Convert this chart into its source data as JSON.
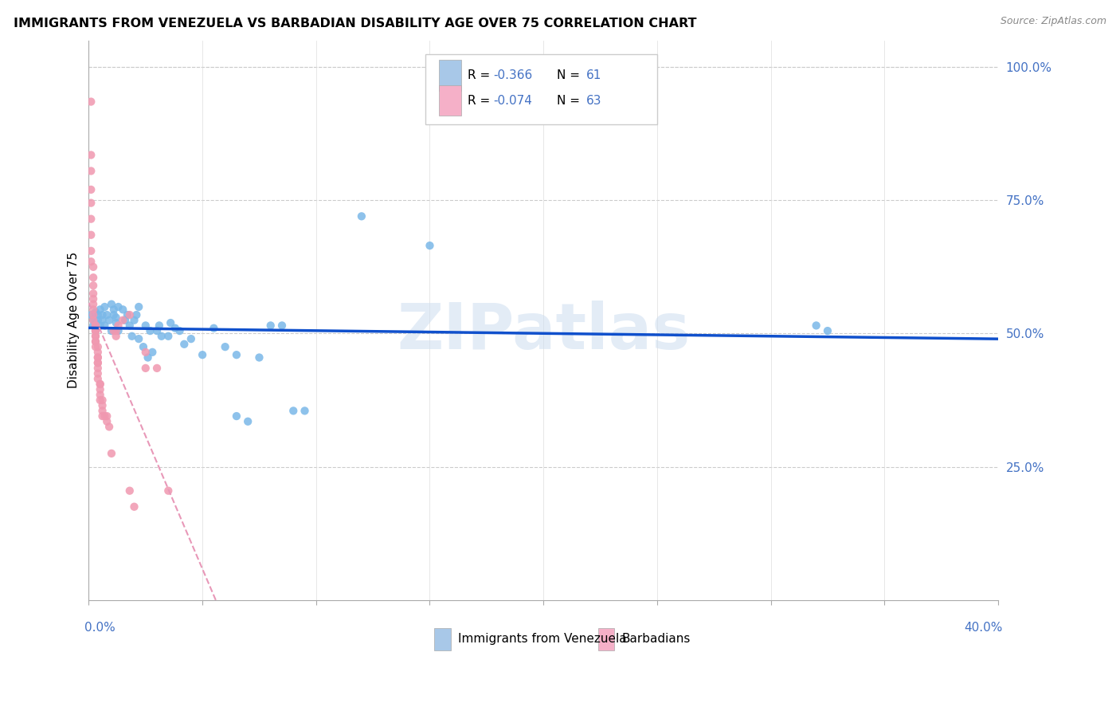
{
  "title": "IMMIGRANTS FROM VENEZUELA VS BARBADIAN DISABILITY AGE OVER 75 CORRELATION CHART",
  "source": "Source: ZipAtlas.com",
  "ylabel": "Disability Age Over 75",
  "right_yticks": [
    "100.0%",
    "75.0%",
    "50.0%",
    "25.0%"
  ],
  "right_ytick_vals": [
    1.0,
    0.75,
    0.5,
    0.25
  ],
  "legend_line1": "R = -0.366   N =  61",
  "legend_line2": "R = -0.074   N =  63",
  "legend_color1": "#a8c8e8",
  "legend_color2": "#f5b0c8",
  "legend_bottom": [
    "Immigrants from Venezuela",
    "Barbadians"
  ],
  "legend_bottom_colors": [
    "#a8c8e8",
    "#f5b0c8"
  ],
  "xmin": 0.0,
  "xmax": 0.4,
  "ymin": 0.0,
  "ymax": 1.05,
  "watermark": "ZIPatlas",
  "blue_color": "#7ab8e8",
  "pink_color": "#f098b0",
  "trend_blue": "#1050cc",
  "trend_pink_color": "#e898b8",
  "venezuela_points": [
    [
      0.001,
      0.535
    ],
    [
      0.002,
      0.525
    ],
    [
      0.002,
      0.515
    ],
    [
      0.003,
      0.52
    ],
    [
      0.003,
      0.54
    ],
    [
      0.004,
      0.535
    ],
    [
      0.004,
      0.525
    ],
    [
      0.005,
      0.545
    ],
    [
      0.005,
      0.515
    ],
    [
      0.006,
      0.535
    ],
    [
      0.006,
      0.525
    ],
    [
      0.007,
      0.55
    ],
    [
      0.007,
      0.515
    ],
    [
      0.008,
      0.535
    ],
    [
      0.009,
      0.525
    ],
    [
      0.01,
      0.555
    ],
    [
      0.01,
      0.505
    ],
    [
      0.011,
      0.545
    ],
    [
      0.011,
      0.535
    ],
    [
      0.012,
      0.53
    ],
    [
      0.012,
      0.52
    ],
    [
      0.013,
      0.55
    ],
    [
      0.013,
      0.505
    ],
    [
      0.015,
      0.545
    ],
    [
      0.016,
      0.525
    ],
    [
      0.017,
      0.535
    ],
    [
      0.018,
      0.515
    ],
    [
      0.019,
      0.495
    ],
    [
      0.02,
      0.525
    ],
    [
      0.021,
      0.535
    ],
    [
      0.022,
      0.55
    ],
    [
      0.022,
      0.49
    ],
    [
      0.024,
      0.475
    ],
    [
      0.025,
      0.515
    ],
    [
      0.026,
      0.455
    ],
    [
      0.027,
      0.505
    ],
    [
      0.028,
      0.465
    ],
    [
      0.03,
      0.505
    ],
    [
      0.031,
      0.515
    ],
    [
      0.032,
      0.495
    ],
    [
      0.035,
      0.495
    ],
    [
      0.036,
      0.52
    ],
    [
      0.038,
      0.51
    ],
    [
      0.04,
      0.505
    ],
    [
      0.042,
      0.48
    ],
    [
      0.045,
      0.49
    ],
    [
      0.05,
      0.46
    ],
    [
      0.055,
      0.51
    ],
    [
      0.06,
      0.475
    ],
    [
      0.065,
      0.46
    ],
    [
      0.065,
      0.345
    ],
    [
      0.07,
      0.335
    ],
    [
      0.075,
      0.455
    ],
    [
      0.08,
      0.515
    ],
    [
      0.085,
      0.515
    ],
    [
      0.09,
      0.355
    ],
    [
      0.095,
      0.355
    ],
    [
      0.12,
      0.72
    ],
    [
      0.15,
      0.665
    ],
    [
      0.32,
      0.515
    ],
    [
      0.325,
      0.505
    ]
  ],
  "barbadian_points": [
    [
      0.001,
      0.935
    ],
    [
      0.001,
      0.835
    ],
    [
      0.001,
      0.805
    ],
    [
      0.001,
      0.77
    ],
    [
      0.001,
      0.745
    ],
    [
      0.001,
      0.715
    ],
    [
      0.001,
      0.685
    ],
    [
      0.001,
      0.655
    ],
    [
      0.001,
      0.635
    ],
    [
      0.002,
      0.625
    ],
    [
      0.002,
      0.605
    ],
    [
      0.002,
      0.59
    ],
    [
      0.002,
      0.575
    ],
    [
      0.002,
      0.565
    ],
    [
      0.002,
      0.555
    ],
    [
      0.002,
      0.545
    ],
    [
      0.002,
      0.535
    ],
    [
      0.002,
      0.525
    ],
    [
      0.003,
      0.515
    ],
    [
      0.003,
      0.515
    ],
    [
      0.003,
      0.505
    ],
    [
      0.003,
      0.505
    ],
    [
      0.003,
      0.505
    ],
    [
      0.003,
      0.495
    ],
    [
      0.003,
      0.495
    ],
    [
      0.003,
      0.485
    ],
    [
      0.003,
      0.485
    ],
    [
      0.003,
      0.475
    ],
    [
      0.004,
      0.475
    ],
    [
      0.004,
      0.465
    ],
    [
      0.004,
      0.455
    ],
    [
      0.004,
      0.455
    ],
    [
      0.004,
      0.445
    ],
    [
      0.004,
      0.445
    ],
    [
      0.004,
      0.435
    ],
    [
      0.004,
      0.425
    ],
    [
      0.004,
      0.415
    ],
    [
      0.005,
      0.405
    ],
    [
      0.005,
      0.405
    ],
    [
      0.005,
      0.395
    ],
    [
      0.005,
      0.385
    ],
    [
      0.005,
      0.375
    ],
    [
      0.006,
      0.375
    ],
    [
      0.006,
      0.365
    ],
    [
      0.006,
      0.355
    ],
    [
      0.006,
      0.345
    ],
    [
      0.007,
      0.345
    ],
    [
      0.008,
      0.345
    ],
    [
      0.008,
      0.335
    ],
    [
      0.009,
      0.325
    ],
    [
      0.01,
      0.275
    ],
    [
      0.011,
      0.505
    ],
    [
      0.012,
      0.505
    ],
    [
      0.012,
      0.495
    ],
    [
      0.013,
      0.515
    ],
    [
      0.015,
      0.525
    ],
    [
      0.018,
      0.535
    ],
    [
      0.018,
      0.205
    ],
    [
      0.02,
      0.175
    ],
    [
      0.025,
      0.465
    ],
    [
      0.025,
      0.435
    ],
    [
      0.03,
      0.435
    ],
    [
      0.035,
      0.205
    ]
  ]
}
